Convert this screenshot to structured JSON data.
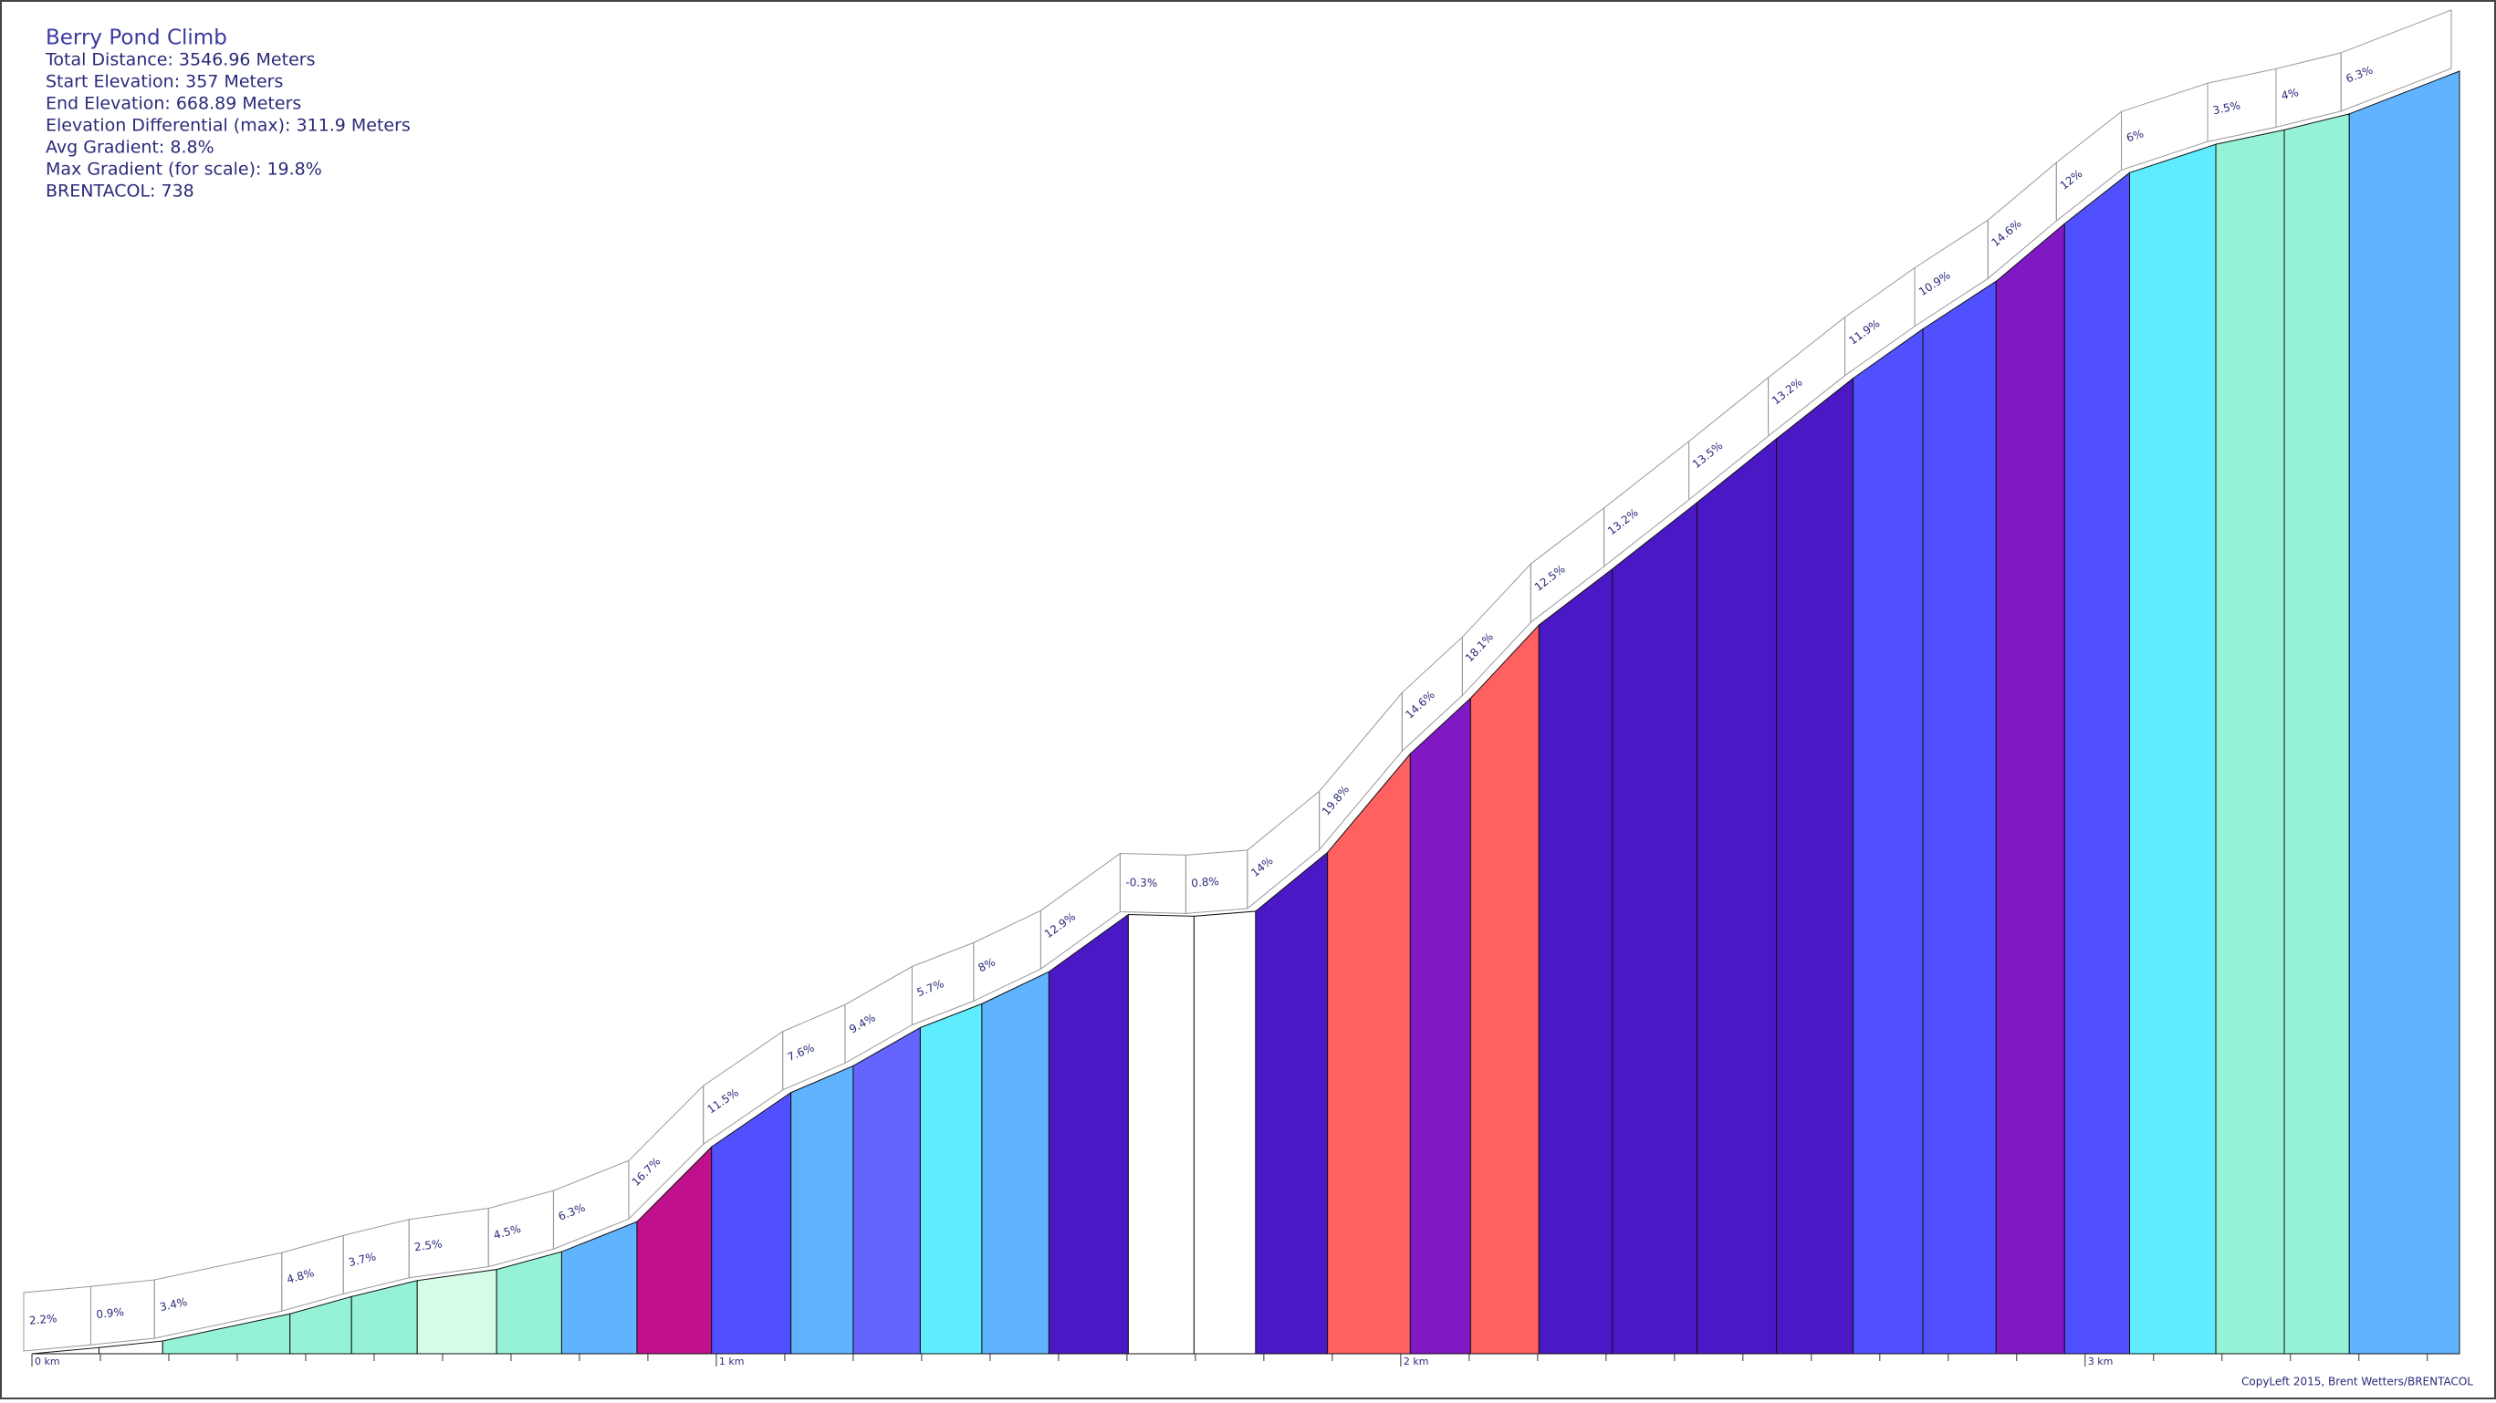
{
  "chart_data": {
    "type": "elevation-profile",
    "title": "Berry Pond Climb",
    "info": [
      "Total Distance: 3546.96 Meters",
      "Start Elevation: 357 Meters",
      "End Elevation: 668.89 Meters",
      "Elevation Differential (max): 311.9 Meters",
      "Avg Gradient: 8.8%",
      "Max Gradient (for scale): 19.8%",
      "BRENTACOL: 738"
    ],
    "footer": "CopyLeft 2015, Brent Wetters/BRENTACOL",
    "x": [
      0,
      0.098,
      0.191,
      0.377,
      0.467,
      0.563,
      0.679,
      0.774,
      0.884,
      0.993,
      1.109,
      1.2,
      1.298,
      1.388,
      1.486,
      1.602,
      1.698,
      1.788,
      1.893,
      2.014,
      2.102,
      2.202,
      2.309,
      2.433,
      2.549,
      2.661,
      2.763,
      2.87,
      2.97,
      3.065,
      3.191,
      3.291,
      3.386,
      3.547
    ],
    "elevation": [
      357,
      358.5,
      360.1,
      366.7,
      370.9,
      374.8,
      377.5,
      381.8,
      389.1,
      407.3,
      420.5,
      427,
      436.3,
      442.1,
      449.9,
      463.8,
      463.4,
      464.6,
      478.9,
      502.9,
      516.4,
      534.2,
      547.8,
      564,
      579.5,
      594.2,
      606.2,
      617.8,
      631.8,
      644.2,
      651.1,
      654.6,
      658.5,
      668.89
    ],
    "gradients": [
      2.2,
      0.9,
      3.4,
      4.8,
      3.7,
      2.5,
      4.5,
      6.3,
      16.7,
      11.5,
      7.6,
      9.4,
      5.7,
      8,
      12.9,
      -0.3,
      0.8,
      14,
      19.8,
      14.6,
      18.1,
      12.5,
      13.2,
      13.5,
      13.2,
      11.9,
      10.9,
      14.6,
      12,
      6,
      3.5,
      4,
      6.3
    ],
    "value_labels": [
      "2.2%",
      "0.9%",
      "3.4%",
      "4.8%",
      "3.7%",
      "2.5%",
      "4.5%",
      "6.3%",
      "16.7%",
      "11.5%",
      "7.6%",
      "9.4%",
      "5.7%",
      "8%",
      "12.9%",
      "-0.3%",
      "0.8%",
      "14%",
      "19.8%",
      "14.6%",
      "18.1%",
      "12.5%",
      "13.2%",
      "13.5%",
      "13.2%",
      "11.9%",
      "10.9%",
      "14.6%",
      "12%",
      "6%",
      "3.5%",
      "4%",
      "6.3%"
    ],
    "colors": [
      "#ffffff",
      "#ffffff",
      "#96f2d7",
      "#96f2d7",
      "#96f2d7",
      "#d4fce6",
      "#96f2d7",
      "#60b4ff",
      "#c0108c",
      "#5050ff",
      "#60b4ff",
      "#6464ff",
      "#60ecff",
      "#60b4ff",
      "#4a18c4",
      "#ffffff",
      "#ffffff",
      "#4a18c4",
      "#ff6060",
      "#8018c4",
      "#ff6060",
      "#4a18c4",
      "#4a18c4",
      "#4a18c4",
      "#4a18c4",
      "#5050ff",
      "#5050ff",
      "#8018c4",
      "#5050ff",
      "#60ecff",
      "#96f2d7",
      "#96f2d7",
      "#60b4ff"
    ],
    "xlim": [
      0,
      3.547
    ],
    "ylim": [
      357,
      668.89
    ],
    "xticks": [
      {
        "value": 0,
        "label": "0 km"
      },
      {
        "value": 1,
        "label": "1 km"
      },
      {
        "value": 2,
        "label": "2 km"
      },
      {
        "value": 3,
        "label": "3 km"
      }
    ],
    "xminorticks": [
      0.1,
      0.2,
      0.3,
      0.4,
      0.5,
      0.6,
      0.7,
      0.8,
      0.9,
      1.1,
      1.2,
      1.3,
      1.4,
      1.5,
      1.6,
      1.7,
      1.8,
      1.9,
      2.1,
      2.2,
      2.3,
      2.4,
      2.5,
      2.6,
      2.7,
      2.8,
      2.9,
      3.1,
      3.2,
      3.3,
      3.4,
      3.5
    ]
  }
}
